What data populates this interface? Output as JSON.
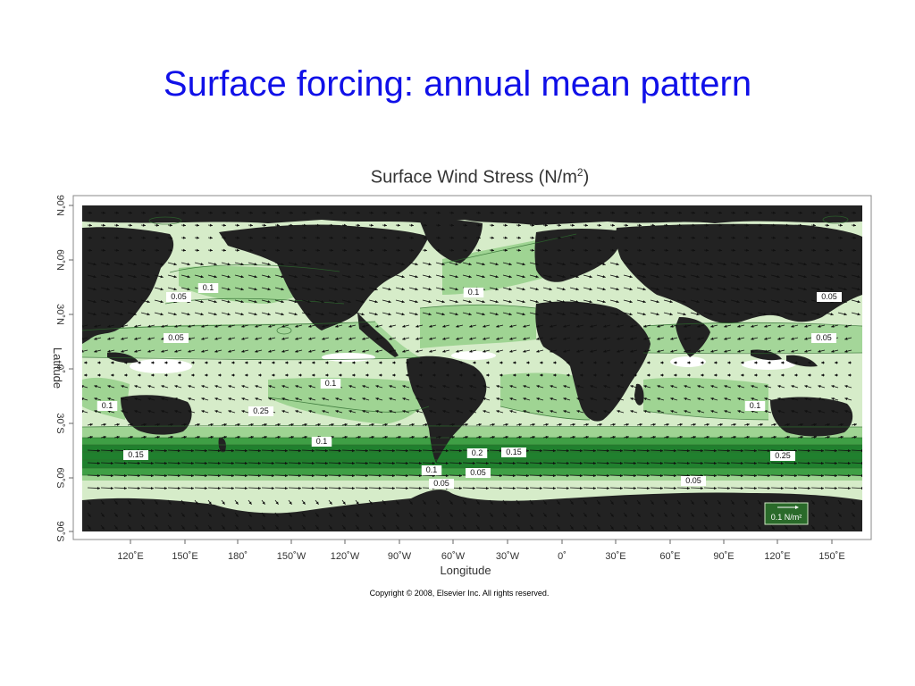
{
  "slide": {
    "title": "Surface forcing: annual mean pattern",
    "copyright": "Copyright © 2008, Elsevier Inc. All rights reserved."
  },
  "figure": {
    "title_main": "Surface Wind Stress (N/m",
    "title_sup": "2",
    "title_end": ")",
    "x_axis_label": "Longitude",
    "y_axis_label": "Latitude",
    "x_ticks": [
      "120˚E",
      "150˚E",
      "180˚",
      "150˚W",
      "120˚W",
      "90˚W",
      "60˚W",
      "30˚W",
      "0˚",
      "30˚E",
      "60˚E",
      "90˚E",
      "120˚E",
      "150˚E"
    ],
    "y_ticks": [
      "90˚N",
      "60˚N",
      "30˚N",
      "0˚",
      "30˚S",
      "60˚S",
      "90˚S"
    ],
    "scale_arrow_label": "0.1 N/m²",
    "contour_labels": [
      {
        "text": "0.1"
      },
      {
        "text": "0.05"
      },
      {
        "text": "0.05"
      },
      {
        "text": "0.1"
      },
      {
        "text": "0.05"
      },
      {
        "text": "0.05"
      },
      {
        "text": "0.1"
      },
      {
        "text": "0.25"
      },
      {
        "text": "0.1"
      },
      {
        "text": "0.15"
      },
      {
        "text": "0.2"
      },
      {
        "text": "0.15"
      },
      {
        "text": "0.1"
      },
      {
        "text": "0.05"
      },
      {
        "text": "0.05"
      },
      {
        "text": "0.05"
      },
      {
        "text": "0.1"
      },
      {
        "text": "0.25"
      },
      {
        "text": "0.1"
      }
    ],
    "colors": {
      "land": "#222222",
      "ocean_light": "#d6ecc9",
      "ocean_mid": "#9fd493",
      "ocean_strong": "#3f9f45",
      "ocean_very_strong": "#20802e",
      "arrow": "#111111"
    }
  }
}
